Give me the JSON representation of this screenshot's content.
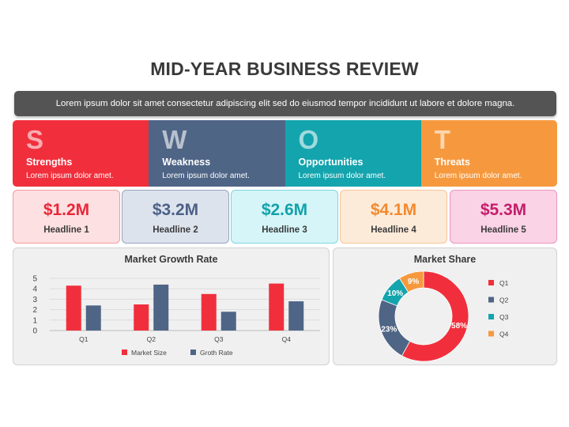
{
  "header": {
    "title": "MID-YEAR BUSINESS REVIEW",
    "subtitle": "Lorem ipsum dolor sit amet consectetur adipiscing elit sed do eiusmod tempor incididunt ut labore et dolore magna."
  },
  "swot": [
    {
      "letter": "S",
      "heading": "Strengths",
      "text": "Lorem ipsum dolor amet.",
      "color": "#f12f3c"
    },
    {
      "letter": "W",
      "heading": "Weakness",
      "text": "Lorem ipsum dolor amet.",
      "color": "#4f6586"
    },
    {
      "letter": "O",
      "heading": "Opportunities",
      "text": "Lorem ipsum dolor amet.",
      "color": "#14a4ad"
    },
    {
      "letter": "T",
      "heading": "Threats",
      "text": "Lorem ipsum dolor amet.",
      "color": "#f6993e"
    }
  ],
  "kpis": [
    {
      "value": "$1.2M",
      "label": "Headline 1",
      "color": "#e8283a",
      "bg": "#fde0e1",
      "border": "#f39aa1"
    },
    {
      "value": "$3.2M",
      "label": "Headline 2",
      "color": "#4c6187",
      "bg": "#dde3ed",
      "border": "#98a6c0"
    },
    {
      "value": "$2.6M",
      "label": "Headline 3",
      "color": "#12a2ab",
      "bg": "#d5f5f8",
      "border": "#7fd6de"
    },
    {
      "value": "$4.1M",
      "label": "Headline 4",
      "color": "#f28a2f",
      "bg": "#fdebd9",
      "border": "#f8c495"
    },
    {
      "value": "$5.3M",
      "label": "Headline 5",
      "color": "#c41e6a",
      "bg": "#fbd3e6",
      "border": "#ee93bd"
    }
  ],
  "chart_data": [
    {
      "type": "bar",
      "title": "Market Growth Rate",
      "categories": [
        "Q1",
        "Q2",
        "Q3",
        "Q4"
      ],
      "series": [
        {
          "name": "Market Size",
          "values": [
            4.3,
            2.5,
            3.5,
            4.5
          ],
          "color": "#f12f3c"
        },
        {
          "name": "Groth Rate",
          "values": [
            2.4,
            4.4,
            1.8,
            2.8
          ],
          "color": "#4f6586"
        }
      ],
      "ylim": [
        0,
        5
      ],
      "yticks": [
        0,
        1,
        2,
        3,
        4,
        5
      ],
      "grid": true,
      "legend": "bottom"
    },
    {
      "type": "pie",
      "title": "Market Share",
      "donut": true,
      "slices": [
        {
          "label": "Q1",
          "value": 58,
          "display": "58%",
          "color": "#f12f3c"
        },
        {
          "label": "Q2",
          "value": 23,
          "display": "23%",
          "color": "#4f6586"
        },
        {
          "label": "Q3",
          "value": 10,
          "display": "10%",
          "color": "#14a4ad"
        },
        {
          "label": "Q4",
          "value": 9,
          "display": "9%",
          "color": "#f6993e"
        }
      ],
      "legend": "right"
    }
  ]
}
